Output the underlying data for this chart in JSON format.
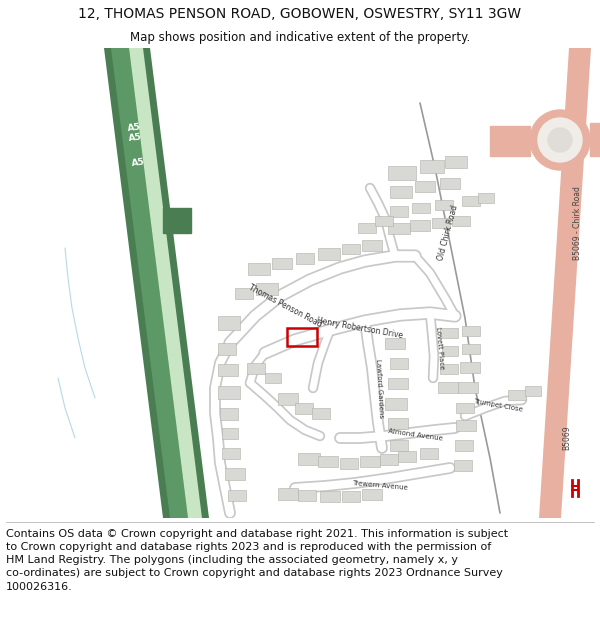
{
  "title": "12, THOMAS PENSON ROAD, GOBOWEN, OSWESTRY, SY11 3GW",
  "subtitle": "Map shows position and indicative extent of the property.",
  "footer": "Contains OS data © Crown copyright and database right 2021. This information is subject\nto Crown copyright and database rights 2023 and is reproduced with the permission of\nHM Land Registry. The polygons (including the associated geometry, namely x, y\nco-ordinates) are subject to Crown copyright and database rights 2023 Ordnance Survey\n100026316.",
  "background_color": "#ffffff",
  "title_fontsize": 10,
  "subtitle_fontsize": 8.5,
  "footer_fontsize": 8.0,
  "a5_dark": "#4a7d52",
  "a5_mid": "#5c9966",
  "a5_light": "#c8e6c4",
  "b5069_color": "#e8b0a0",
  "road_fill": "#ffffff",
  "road_edge": "#c8c8c8",
  "building_fill": "#d8d8d4",
  "building_edge": "#b0b0aa"
}
